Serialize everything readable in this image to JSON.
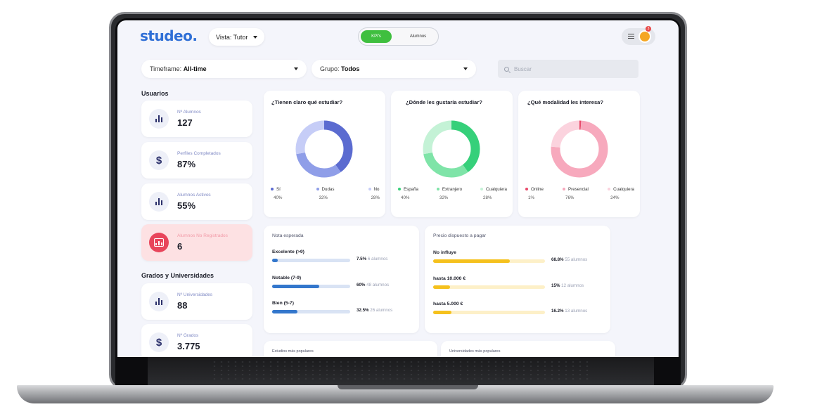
{
  "colors": {
    "brand": "#2f6fd6",
    "toggle_active": "#3fbf3f",
    "alert": "#e8455b",
    "blue": "#3377cc",
    "orange": "#f5c11d"
  },
  "header": {
    "logo": "studeo.",
    "view_select": "Vista: Tutor",
    "toggle": {
      "active": "KPI's",
      "inactive": "Alumnos"
    },
    "notification_count": "3"
  },
  "filters": {
    "timeframe": {
      "label": "Timeframe:",
      "value": "All-time"
    },
    "group": {
      "label": "Grupo:",
      "value": "Todos"
    },
    "search_placeholder": "Buscar"
  },
  "usuarios": {
    "title": "Usuarios",
    "stats": [
      {
        "label": "Nº Alumnos",
        "value": "127",
        "icon": "bar-chart-icon"
      },
      {
        "label": "Perfiles Completados",
        "value": "87%",
        "icon": "dollar-icon"
      },
      {
        "label": "Alumnos Activos",
        "value": "55%",
        "icon": "bar-chart-icon"
      },
      {
        "label": "Alumnos No Registrados",
        "value": "6",
        "icon": "chart-box-icon"
      }
    ]
  },
  "grados": {
    "title": "Grados y Universidades",
    "stats": [
      {
        "label": "Nº Universidades",
        "value": "88",
        "icon": "bar-chart-icon"
      },
      {
        "label": "Nº Grados",
        "value": "3.775",
        "icon": "dollar-icon"
      }
    ]
  },
  "donuts": [
    {
      "question": "¿Tienen claro qué estudiar?",
      "items": [
        {
          "label": "Sí",
          "pct": "40%",
          "value": 40,
          "color": "#5b6bd0"
        },
        {
          "label": "Dudas",
          "pct": "32%",
          "value": 32,
          "color": "#8f9ee8"
        },
        {
          "label": "No",
          "pct": "28%",
          "value": 28,
          "color": "#c6cdf7"
        }
      ]
    },
    {
      "question": "¿Dónde les gustaría estudiar?",
      "items": [
        {
          "label": "España",
          "pct": "40%",
          "value": 40,
          "color": "#36d07a"
        },
        {
          "label": "Extranjero",
          "pct": "32%",
          "value": 32,
          "color": "#7fe4a8"
        },
        {
          "label": "Cualquiera",
          "pct": "28%",
          "value": 28,
          "color": "#c4f2d6"
        }
      ]
    },
    {
      "question": "¿Qué modalidad les interesa?",
      "items": [
        {
          "label": "Online",
          "pct": "1%",
          "value": 1,
          "color": "#e84a6a"
        },
        {
          "label": "Presencial",
          "pct": "76%",
          "value": 76,
          "color": "#f7a9bd"
        },
        {
          "label": "Cualquiera",
          "pct": "24%",
          "value": 24,
          "color": "#fbd3de"
        }
      ]
    }
  ],
  "nota": {
    "title": "Nota esperada",
    "rows": [
      {
        "name": "Excelente (>9)",
        "pct_label": "7.5%",
        "detail": "6 alumnos",
        "value": 7.5
      },
      {
        "name": "Notable (7-9)",
        "pct_label": "60%",
        "detail": "48 alumnos",
        "value": 60
      },
      {
        "name": "Bien (5-7)",
        "pct_label": "32.5%",
        "detail": "26 alumnos",
        "value": 32.5
      }
    ]
  },
  "precio": {
    "title": "Precio dispuesto a pagar",
    "rows": [
      {
        "name": "No influye",
        "pct_label": "68.8%",
        "detail": "55 alumnos",
        "value": 68.8
      },
      {
        "name": "hasta 10.000 €",
        "pct_label": "15%",
        "detail": "12 alumnos",
        "value": 15
      },
      {
        "name": "hasta 5.000 €",
        "pct_label": "16.2%",
        "detail": "13 alumnos",
        "value": 16.2
      }
    ]
  },
  "bottom": {
    "estudios": "Estudios más populares",
    "universidades": "Universidades más populares"
  }
}
